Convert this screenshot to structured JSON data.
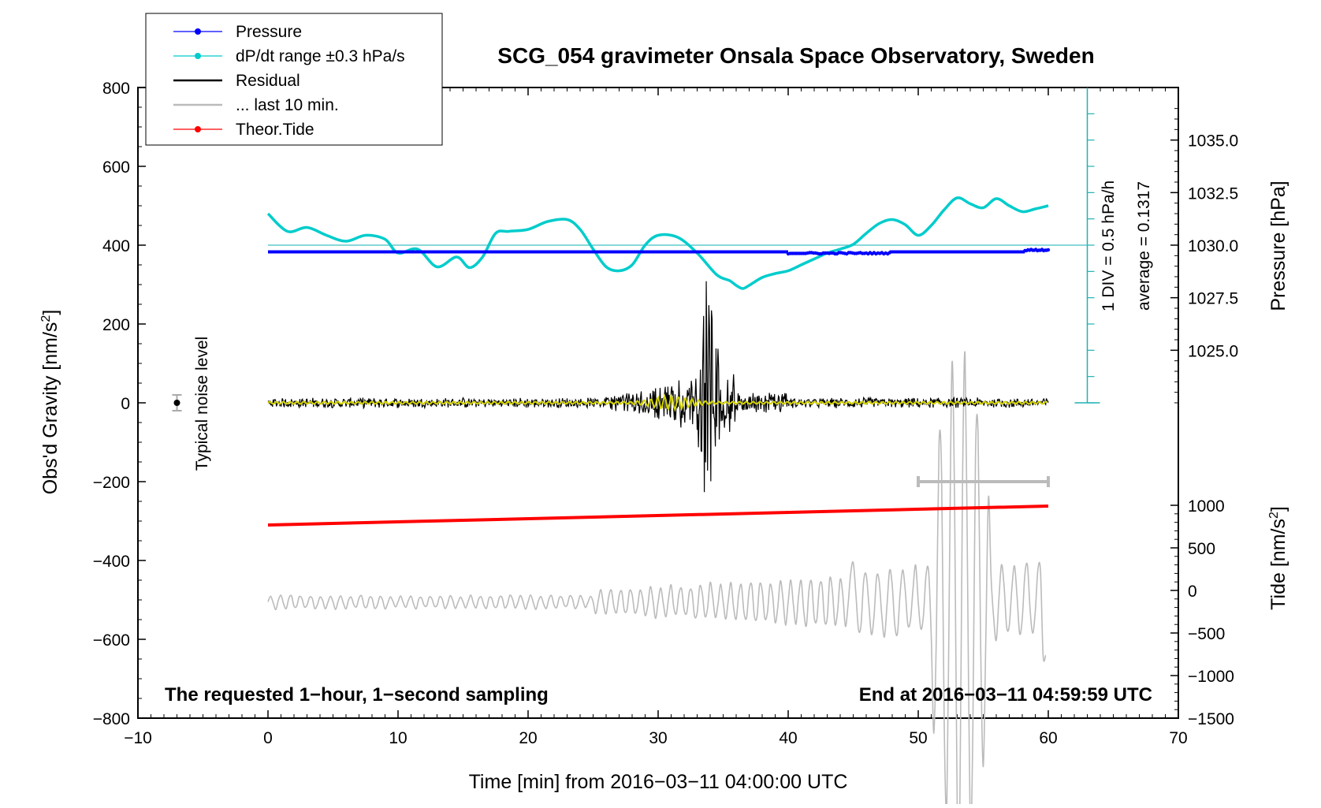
{
  "chart_data": {
    "type": "line",
    "title": "SCG_054 gravimeter Onsala Space Observatory, Sweden",
    "xlabel": "Time [min] from 2016−03−11 04:00:00 UTC",
    "ylabel_left": "Obs'd Gravity [nm/s",
    "ylabel_left_sup": "2",
    "ylabel_left_end": "]",
    "ylabel_right_top": "Pressure [hPa]",
    "ylabel_right_bottom": "Tide [nm/s",
    "ylabel_right_bottom_sup": "2",
    "ylabel_right_bottom_end": "]",
    "xlim": [
      -10,
      70
    ],
    "ylim": [
      -800,
      800
    ],
    "x_ticks": [
      "−10",
      "0",
      "10",
      "20",
      "30",
      "40",
      "50",
      "60",
      "70"
    ],
    "y_ticks": [
      "−800",
      "−600",
      "−400",
      "−200",
      "0",
      "200",
      "400",
      "600",
      "800"
    ],
    "pressure_axis": {
      "ticks": [
        "1025.0",
        "1027.5",
        "1030.0",
        "1032.5",
        "1035.0"
      ],
      "values": [
        1025.0,
        1027.5,
        1030.0,
        1032.5,
        1035.0
      ],
      "value_at_gravity_400": 1030.0,
      "hPa_per_gravity_unit": 0.01875
    },
    "tide_axis": {
      "ticks": [
        "−1500",
        "−1000",
        "−500",
        "0",
        "500",
        "1000"
      ],
      "values": [
        -1500,
        -1000,
        -500,
        0,
        500,
        1000
      ],
      "range": [
        -1500,
        1000
      ],
      "gravity_range": [
        -800,
        -260
      ]
    },
    "legend": [
      {
        "label": "Pressure",
        "color": "#0000ff",
        "marker": true
      },
      {
        "label": "dP/dt range ±0.3 hPa/s",
        "color": "#00cccc",
        "marker": true
      },
      {
        "label": "Residual",
        "color": "#000000",
        "marker": false
      },
      {
        "label": "... last 10 min.",
        "color": "#bbbbbb",
        "marker": false
      },
      {
        "label": "Theor.Tide",
        "color": "#ff0000",
        "marker": true
      }
    ],
    "scale_bar": {
      "label1": "1 DIV = 0.5 hPa/h",
      "label2": "average = 0.1317",
      "x": 63,
      "y_range": [
        0,
        800
      ],
      "baseline": 400
    },
    "noise_label": "Typical noise level",
    "noise_point": {
      "x": -7,
      "y": 0,
      "err": 20
    },
    "annotation_left": "The requested 1−hour, 1−second sampling",
    "annotation_right": "End at 2016−03−11 04:59:59 UTC",
    "series": [
      {
        "name": "Pressure",
        "color": "#0000ff",
        "x": [
          0,
          40,
          40.5,
          41,
          42,
          43,
          44,
          45,
          46,
          47.5,
          48,
          58,
          59,
          60
        ],
        "y": [
          383,
          383,
          380,
          378,
          379,
          378,
          380,
          378,
          379,
          380,
          383,
          383,
          388,
          388
        ]
      },
      {
        "name": "dP/dt",
        "color": "#00cccc",
        "x": [
          0,
          1.5,
          3,
          4.5,
          6,
          7.5,
          9,
          10,
          11.5,
          13,
          14.5,
          15.5,
          16.5,
          17.5,
          18.5,
          20,
          21.5,
          23,
          24,
          25,
          26,
          27,
          28,
          29,
          30,
          31.5,
          33,
          34.5,
          35.5,
          36,
          36.5,
          37,
          38,
          39,
          40,
          41,
          42,
          43,
          44,
          45,
          46,
          47,
          48,
          49,
          50,
          51,
          52,
          53,
          54,
          55,
          56,
          57,
          58,
          59,
          60
        ],
        "y": [
          480,
          435,
          445,
          425,
          410,
          425,
          415,
          380,
          390,
          345,
          370,
          343,
          370,
          430,
          435,
          440,
          460,
          465,
          440,
          390,
          345,
          335,
          350,
          400,
          425,
          420,
          380,
          325,
          310,
          298,
          290,
          298,
          318,
          328,
          335,
          350,
          365,
          380,
          390,
          402,
          430,
          455,
          465,
          452,
          425,
          450,
          490,
          520,
          505,
          495,
          518,
          500,
          485,
          492,
          500
        ]
      },
      {
        "name": "Residual",
        "color": "#000000",
        "x_range": [
          0,
          60
        ],
        "y_center": 0
      },
      {
        "name": "Residual smoothed",
        "color": "#d4d400",
        "x_range": [
          0,
          60
        ],
        "y_center": 0
      },
      {
        "name": "Theor.Tide",
        "color": "#ff0000",
        "x": [
          0,
          60
        ],
        "y": [
          -310,
          -262
        ]
      },
      {
        "name": "last 10 min.",
        "color": "#bbbbbb",
        "x_range": [
          0,
          60
        ],
        "y_center": -505
      },
      {
        "name": "last 10 min. bar",
        "color": "#bbbbbb",
        "x": [
          50,
          60
        ],
        "y": [
          -200,
          -200
        ]
      }
    ]
  }
}
